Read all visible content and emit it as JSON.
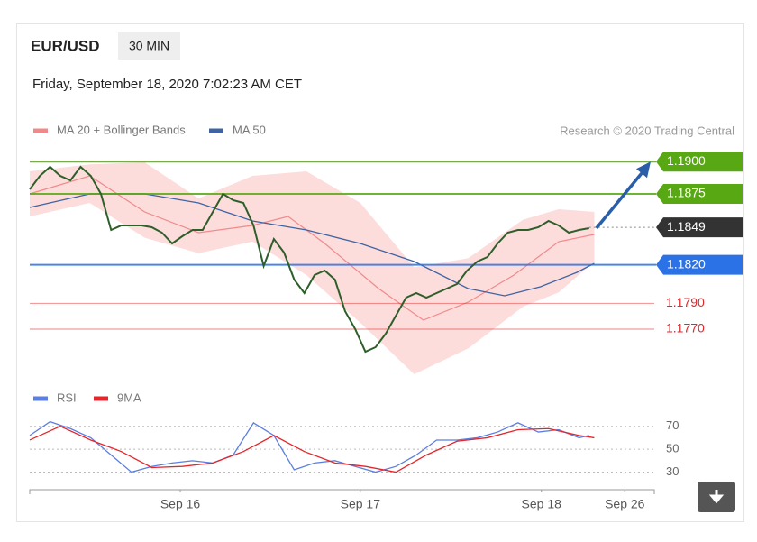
{
  "header": {
    "symbol": "EUR/USD",
    "interval": "30 MIN",
    "timestamp": "Friday, September 18, 2020 7:02:23 AM CET",
    "credit": "Research © 2020 Trading Central"
  },
  "chart_data": [
    {
      "type": "line",
      "xlim": [
        0,
        61.4
      ],
      "ylim": [
        1.1735,
        1.191
      ],
      "x": [
        0,
        1,
        2,
        3,
        4,
        5,
        6,
        7,
        8,
        9,
        10,
        11,
        12,
        13,
        14,
        15,
        16,
        17,
        18,
        19,
        20,
        21,
        22,
        23,
        24,
        25,
        26,
        27,
        28,
        29,
        30,
        31,
        32,
        33,
        34,
        35,
        36,
        37,
        38,
        39,
        40,
        41,
        42,
        43,
        44,
        45,
        46,
        47,
        48,
        49,
        50,
        51,
        52,
        53,
        54,
        55
      ],
      "price": {
        "color": "#2e5e2a",
        "values": [
          1.18785,
          1.1889,
          1.1896,
          1.1889,
          1.18855,
          1.1896,
          1.1889,
          1.1875,
          1.1847,
          1.18505,
          1.18505,
          1.18505,
          1.18491,
          1.18449,
          1.18365,
          1.18421,
          1.1847,
          1.1847,
          1.1861,
          1.1875,
          1.18701,
          1.1868,
          1.18505,
          1.1819,
          1.184,
          1.18295,
          1.18085,
          1.1798,
          1.1812,
          1.18155,
          1.18085,
          1.1784,
          1.177,
          1.17525,
          1.1756,
          1.17665,
          1.17805,
          1.17945,
          1.1798,
          1.17945,
          1.1798,
          1.18015,
          1.1805,
          1.18155,
          1.18225,
          1.1826,
          1.18365,
          1.18449,
          1.1847,
          1.1847,
          1.18491,
          1.1854,
          1.18505,
          1.18449,
          1.1847,
          1.18484
        ]
      },
      "band": {
        "color": "#fcd0d0",
        "x": [
          0,
          5.9,
          11.3,
          16.6,
          21.9,
          27.2,
          32.5,
          37.8,
          43.1,
          48.5,
          52,
          55.5
        ],
        "upper": [
          1.18925,
          1.18979,
          1.18995,
          1.18715,
          1.1889,
          1.18925,
          1.1868,
          1.1818,
          1.1825,
          1.1855,
          1.18631,
          1.1861
        ],
        "lower": [
          1.18575,
          1.1868,
          1.1841,
          1.1829,
          1.1838,
          1.1812,
          1.1775,
          1.1735,
          1.1755,
          1.17875,
          1.17985,
          1.18225
        ]
      },
      "series": [
        {
          "name": "MA 20 + Bollinger Bands",
          "color": "#f08a8a",
          "x": [
            0,
            5.9,
            11.3,
            16.6,
            21.9,
            25.4,
            29,
            34.3,
            38.7,
            43.1,
            47.6,
            52,
            55.5
          ],
          "values": [
            1.1875,
            1.1889,
            1.1861,
            1.18449,
            1.18505,
            1.18575,
            1.18365,
            1.18015,
            1.1777,
            1.1791,
            1.1812,
            1.18379,
            1.18435
          ]
        },
        {
          "name": "MA 50",
          "color": "#3f64a3",
          "x": [
            0,
            5.9,
            11.3,
            16.6,
            21.9,
            27.2,
            32.5,
            37.8,
            43.1,
            46.7,
            50.2,
            53.8,
            55.5
          ],
          "values": [
            1.18645,
            1.1875,
            1.1875,
            1.1868,
            1.1854,
            1.1847,
            1.18365,
            1.18225,
            1.18015,
            1.17959,
            1.18029,
            1.18141,
            1.18211
          ]
        }
      ],
      "levels": [
        {
          "value": 1.19,
          "label": "1.1900",
          "color": "#58a813",
          "style": "box"
        },
        {
          "value": 1.1875,
          "label": "1.1875",
          "color": "#58a813",
          "style": "box"
        },
        {
          "value": 1.1849,
          "label": "1.1849",
          "color": "#333333",
          "style": "current"
        },
        {
          "value": 1.182,
          "label": "1.1820",
          "color": "#2b72e6",
          "style": "box"
        },
        {
          "value": 1.179,
          "label": "1.1790",
          "color": "#e3262b",
          "style": "text"
        },
        {
          "value": 1.177,
          "label": "1.1770",
          "color": "#e3262b",
          "style": "text"
        }
      ],
      "target": {
        "value": 1.19,
        "color": "#2a5ea8"
      }
    },
    {
      "type": "line",
      "xlim": [
        0,
        61.4
      ],
      "ylim": [
        21,
        80
      ],
      "yticks": [
        70,
        50,
        30
      ],
      "xticks": [
        {
          "value": 14.8,
          "label": "Sep 16"
        },
        {
          "value": 32.5,
          "label": "Sep 17"
        },
        {
          "value": 50.3,
          "label": "Sep 18"
        },
        {
          "value": 58.5,
          "label": "Sep 26"
        }
      ],
      "series": [
        {
          "name": "RSI",
          "color": "#5b7fe0",
          "x": [
            0,
            2,
            4,
            6,
            8,
            10,
            12,
            14,
            16,
            18,
            20,
            22,
            24,
            26,
            28,
            30,
            32,
            34,
            36,
            38,
            40,
            42,
            44,
            46,
            48,
            50,
            52,
            54,
            55
          ],
          "values": [
            62,
            74,
            68,
            60,
            45,
            30,
            35,
            38,
            40,
            38,
            45,
            73,
            62,
            32,
            38,
            40,
            35,
            30,
            35,
            45,
            58,
            58,
            60,
            65,
            73,
            65,
            67,
            60,
            62
          ]
        },
        {
          "name": "9MA",
          "color": "#e3262b",
          "x": [
            0,
            3,
            6,
            9,
            12,
            15,
            18,
            21,
            24,
            27,
            30,
            33,
            36,
            39,
            42,
            45,
            48,
            51,
            54,
            55.5
          ],
          "values": [
            58,
            70,
            58,
            48,
            34,
            35,
            38,
            48,
            62,
            48,
            38,
            35,
            30,
            45,
            57,
            60,
            67,
            68,
            62,
            60
          ]
        }
      ]
    }
  ]
}
